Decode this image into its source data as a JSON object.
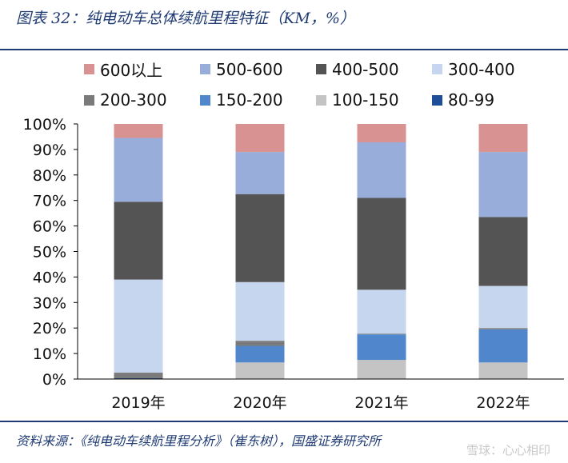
{
  "title": "图表 32：纯电动车总体续航里程特征（KM，%）",
  "source": "资料来源：《纯电动车续航里程分析》（崔东树），国盛证券研究所",
  "watermark": "雪球：心心相印",
  "chart_data": {
    "type": "bar",
    "stacked": true,
    "categories": [
      "2019年",
      "2020年",
      "2021年",
      "2022年"
    ],
    "ylim": [
      0,
      100
    ],
    "yticks": [
      "0%",
      "10%",
      "20%",
      "30%",
      "40%",
      "50%",
      "60%",
      "70%",
      "80%",
      "90%",
      "100%"
    ],
    "legend_position": "top",
    "series": [
      {
        "name": "80-99",
        "color": "#1f4e99",
        "values": [
          0.3,
          0.0,
          0.0,
          0.0
        ]
      },
      {
        "name": "100-150",
        "color": "#c4c4c4",
        "values": [
          0.0,
          6.5,
          7.5,
          6.5
        ]
      },
      {
        "name": "150-200",
        "color": "#4f86cc",
        "values": [
          0.0,
          6.5,
          10.0,
          13.0
        ]
      },
      {
        "name": "200-300",
        "color": "#7a7a7a",
        "values": [
          2.2,
          2.0,
          0.3,
          0.5
        ]
      },
      {
        "name": "300-400",
        "color": "#c7d6ef",
        "values": [
          36.5,
          23.0,
          17.2,
          16.5
        ]
      },
      {
        "name": "400-500",
        "color": "#545454",
        "values": [
          30.5,
          34.5,
          36.0,
          27.0
        ]
      },
      {
        "name": "500-600",
        "color": "#98adda",
        "values": [
          25.0,
          16.5,
          21.8,
          25.5
        ]
      },
      {
        "name": "600以上",
        "color": "#d89292",
        "values": [
          5.5,
          11.0,
          7.2,
          11.0
        ]
      }
    ]
  },
  "legend_rows": [
    [
      "600以上",
      "500-600",
      "400-500",
      "300-400"
    ],
    [
      "200-300",
      "150-200",
      "100-150",
      "80-99"
    ]
  ]
}
